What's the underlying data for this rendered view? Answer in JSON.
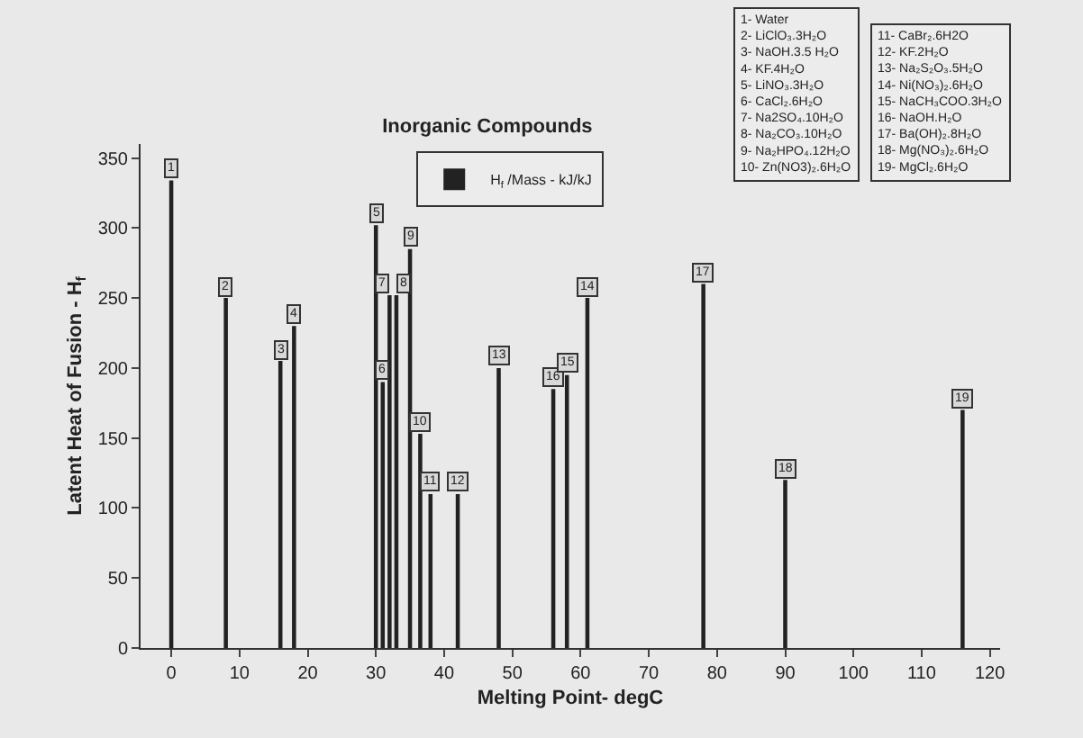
{
  "chart_data": {
    "type": "bar",
    "title": "Inorganic Compounds",
    "xlabel": "Melting Point- degC",
    "ylabel": "Latent Heat of Fusion - H$_{f}$",
    "x": [
      0,
      8,
      16,
      18,
      30,
      31,
      32,
      33,
      35,
      36.5,
      38,
      42,
      48,
      56,
      58,
      61,
      78,
      90,
      116
    ],
    "series": [
      {
        "name": "H$_{f}$ /Mass - kJ/kJ",
        "color": "#222222",
        "values": [
          334,
          250,
          205,
          230,
          302,
          190,
          252,
          252,
          285,
          153,
          110,
          110,
          200,
          185,
          195,
          250,
          260,
          120,
          170
        ]
      }
    ],
    "value_labels": [
      "1",
      "2",
      "3",
      "4",
      "5",
      "6",
      "7",
      "8",
      "9",
      "10",
      "11",
      "12",
      "13",
      "16",
      "15",
      "14",
      "17",
      "18",
      "19"
    ],
    "annotations": [
      "1- Water\n2- LiClO₃.3H₂O\n3- NaOH.3.5 H₂O\n4- KF.4H₂O\n5- LiNO₃.3H₂O\n6- CaCl₂.6H₂O\n7- Na2SO₄.10H₂O\n8- Na₂CO₃.10H₂O\n9- Na₂HPO₄.12H₂O\n10- Zn(NO3)₂.6H₂O",
      "11- CaBr₂.6H2O\n12- KF.2H₂O\n13- Na₂S₂O₃.5H₂O\n14- Ni(NO₃)₂.6H₂O\n15- NaCH₃COO.3H₂O\n16- NaOH.H₂O\n17- Ba(OH)₂.8H₂O\n18- Mg(NO₃)₂.6H₂O\n19- MgCl₂.6H₂O"
    ],
    "xlim": [
      -4.5,
      121.5
    ],
    "xticks": [
      0,
      10,
      20,
      30,
      40,
      50,
      60,
      70,
      80,
      90,
      100,
      110,
      120
    ],
    "ylim": [
      0,
      360
    ],
    "yticks": [
      0,
      50,
      100,
      150,
      200,
      250,
      300,
      350
    ],
    "grid": false,
    "legend": "top"
  }
}
